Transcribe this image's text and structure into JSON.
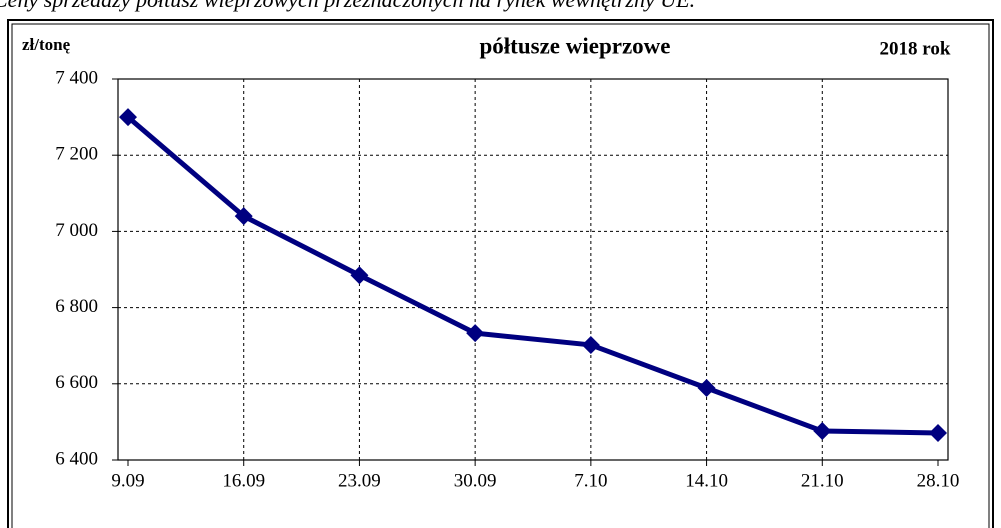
{
  "header": "Ceny sprzedaży półtusz wieprzowych przeznaczonych na rynek wewnętrzny UE.",
  "chart_data": {
    "type": "line",
    "title": "półtusze wieprzowe",
    "y_label": "zł/tonę",
    "annotation": "2018 rok",
    "categories": [
      "9.09",
      "16.09",
      "23.09",
      "30.09",
      "7.10",
      "14.10",
      "21.10",
      "28.10"
    ],
    "series": [
      {
        "name": "półtusze wieprzowe",
        "color": "#000080",
        "values": [
          7300,
          7040,
          6885,
          6733,
          6702,
          6589,
          6476,
          6471
        ]
      }
    ],
    "ylim": [
      6400,
      7400
    ],
    "yticks": [
      {
        "value": 6400,
        "label": "6 400"
      },
      {
        "value": 6600,
        "label": "6 600"
      },
      {
        "value": 6800,
        "label": "6 800"
      },
      {
        "value": 7000,
        "label": "7 000"
      },
      {
        "value": 7200,
        "label": "7 200"
      },
      {
        "value": 7400,
        "label": "7 400"
      }
    ],
    "grid": true
  }
}
